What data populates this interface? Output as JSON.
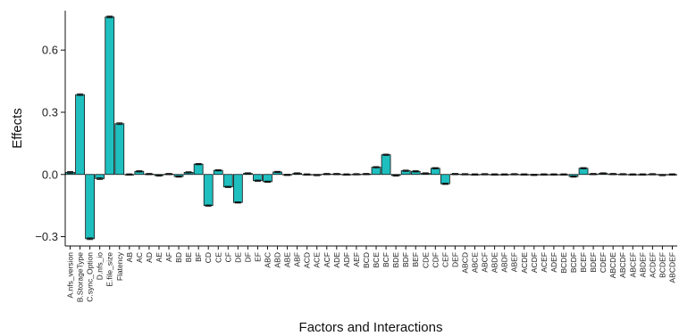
{
  "chart_data": {
    "type": "bar",
    "xlabel": "Factors and Interactions",
    "ylabel": "Effects",
    "ylim": [
      -0.345,
      0.79
    ],
    "yticks": [
      -0.3,
      0.0,
      0.3,
      0.6
    ],
    "ytick_labels": [
      "−0.3",
      "0.0",
      "0.3",
      "0.6"
    ],
    "bar_color": "#1fbfbf",
    "grid": false,
    "legend": "none",
    "categories": [
      "A.nfs_version",
      "B.StorageType",
      "C.sync_Option",
      "D.nfs_io",
      "E.file_size",
      "Flatency",
      "AB",
      "AC",
      "AD",
      "AE",
      "AF",
      "BD",
      "BE",
      "BF",
      "CD",
      "CE",
      "CF",
      "DE",
      "DF",
      "EF",
      "ABC",
      "ABD",
      "ABE",
      "ABF",
      "ACD",
      "ACE",
      "ACF",
      "ADE",
      "ADF",
      "AEF",
      "BCD",
      "BCE",
      "BCF",
      "BDE",
      "BDF",
      "BEF",
      "CDE",
      "CDF",
      "CEF",
      "DEF",
      "ABCD",
      "ABCE",
      "ABCF",
      "ABDE",
      "ABDF",
      "ABEF",
      "ACDE",
      "ACDF",
      "ACEF",
      "ADEF",
      "BCDE",
      "BCDF",
      "BCEF",
      "BDEF",
      "CDEF",
      "ABCDE",
      "ABCDF",
      "ABCEF",
      "ABDEF",
      "ACDEF",
      "BCDEF",
      "ABCDEF"
    ],
    "values": [
      0.01,
      0.385,
      -0.31,
      -0.02,
      0.76,
      0.245,
      0.0,
      0.015,
      0.002,
      -0.005,
      0.002,
      -0.01,
      0.01,
      0.05,
      -0.15,
      0.02,
      -0.06,
      -0.135,
      0.005,
      -0.03,
      -0.035,
      0.012,
      -0.002,
      0.005,
      0.0,
      -0.003,
      0.002,
      0.002,
      0.0,
      0.001,
      0.002,
      0.035,
      0.095,
      -0.005,
      0.018,
      0.015,
      0.005,
      0.03,
      -0.045,
      0.002,
      0.001,
      0.0,
      0.001,
      0.0,
      0.0,
      0.001,
      0.0,
      -0.002,
      0.0,
      0.0,
      0.0,
      -0.01,
      0.03,
      0.002,
      0.005,
      0.002,
      0.001,
      0.0,
      0.0,
      0.001,
      -0.003,
      0.0
    ],
    "errors": [
      0.004,
      0.004,
      0.004,
      0.004,
      0.004,
      0.004,
      0.003,
      0.003,
      0.003,
      0.003,
      0.003,
      0.003,
      0.003,
      0.003,
      0.003,
      0.003,
      0.003,
      0.003,
      0.003,
      0.003,
      0.003,
      0.003,
      0.003,
      0.003,
      0.003,
      0.003,
      0.003,
      0.003,
      0.003,
      0.003,
      0.003,
      0.003,
      0.003,
      0.003,
      0.003,
      0.003,
      0.003,
      0.003,
      0.003,
      0.003,
      0.003,
      0.003,
      0.003,
      0.003,
      0.003,
      0.003,
      0.003,
      0.003,
      0.003,
      0.003,
      0.003,
      0.003,
      0.003,
      0.003,
      0.003,
      0.003,
      0.003,
      0.003,
      0.003,
      0.003,
      0.003,
      0.003
    ]
  }
}
